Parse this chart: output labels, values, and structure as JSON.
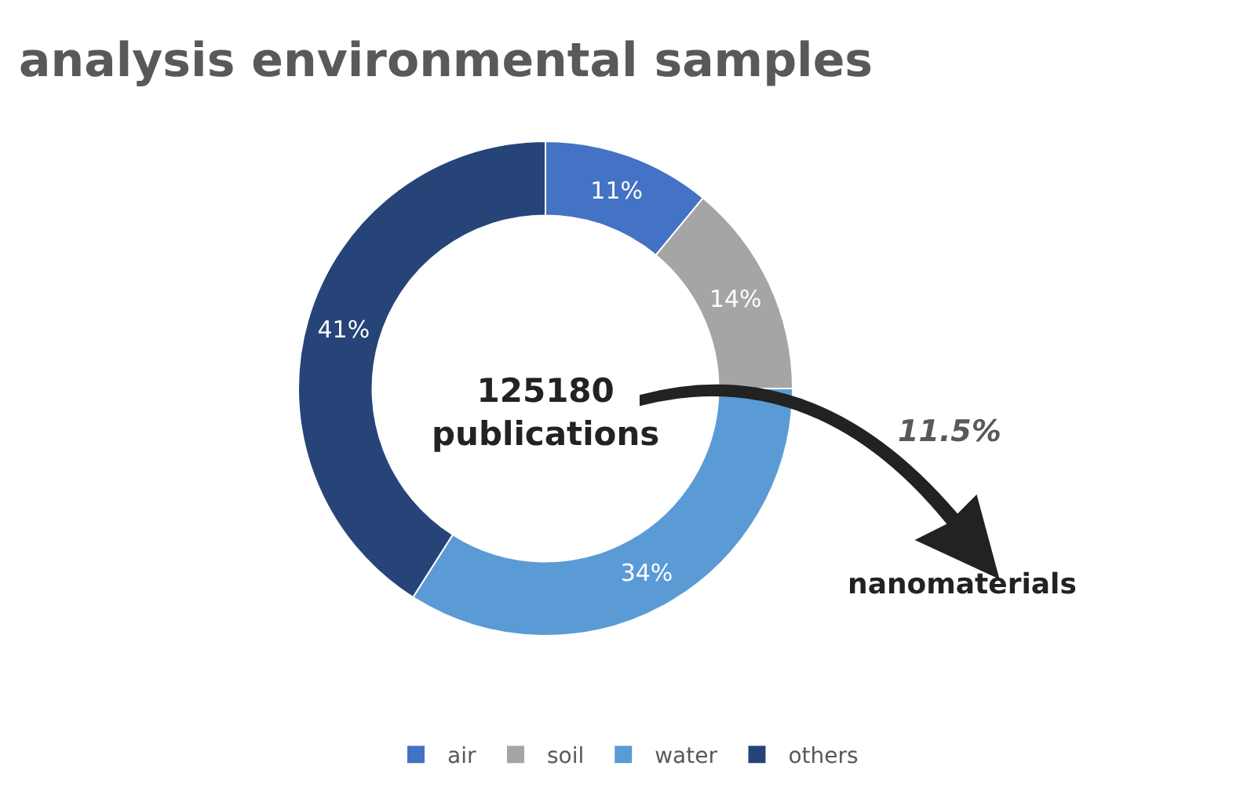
{
  "chart_data": {
    "type": "donut",
    "title": "analysis environmental samples",
    "categories": [
      "air",
      "soil",
      "water",
      "others"
    ],
    "values": [
      11,
      14,
      34,
      41
    ],
    "colors": [
      "#4472c4",
      "#a5a5a5",
      "#5b9bd5",
      "#264478"
    ],
    "value_labels": [
      "11%",
      "14%",
      "34%",
      "41%"
    ],
    "annotations": [
      "125180\npublications",
      "11.5%",
      "nanomaterials"
    ],
    "legend": "bottom"
  }
}
